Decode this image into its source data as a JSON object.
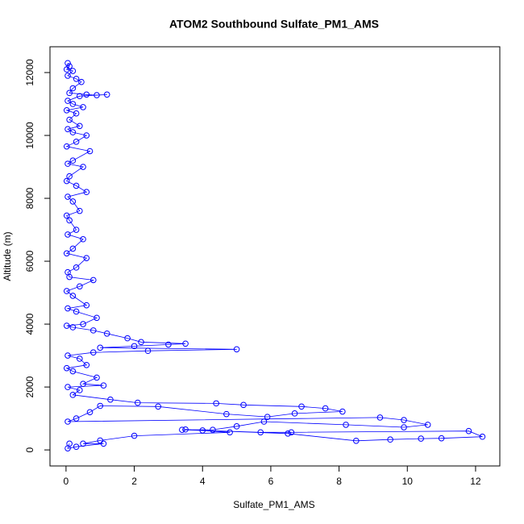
{
  "chart_data": {
    "type": "line",
    "title": "ATOM2 Southbound Sulfate_PM1_AMS",
    "x_label": "Sulfate_PM1_AMS",
    "y_label": "Altitude (m)",
    "color": "#0000ff",
    "marker": "open-circle",
    "xlim": [
      -0.47,
      12.71
    ],
    "ylim": [
      -510,
      12820
    ],
    "xticks": [
      0,
      2,
      4,
      6,
      8,
      10,
      12
    ],
    "yticks": [
      0,
      2000,
      4000,
      6000,
      8000,
      10000,
      12000
    ],
    "x": [
      0.05,
      0.1,
      0.02,
      0.2,
      0.05,
      0.3,
      0.45,
      0.2,
      0.1,
      0.6,
      0.9,
      1.2,
      0.4,
      0.05,
      0.2,
      0.5,
      0.02,
      0.3,
      0.1,
      0.4,
      0.05,
      0.2,
      0.6,
      0.3,
      0.02,
      0.7,
      0.2,
      0.05,
      0.5,
      0.1,
      0.02,
      0.3,
      0.6,
      0.05,
      0.2,
      0.4,
      0.02,
      0.1,
      0.3,
      0.05,
      0.5,
      0.2,
      0.02,
      0.6,
      0.3,
      0.05,
      0.1,
      0.8,
      0.4,
      0.02,
      0.2,
      0.6,
      0.05,
      0.3,
      0.9,
      0.5,
      0.02,
      0.2,
      0.8,
      1.2,
      1.8,
      2.2,
      3.5,
      3.0,
      2.0,
      1.0,
      5.0,
      2.4,
      0.8,
      0.05,
      0.4,
      0.6,
      0.02,
      0.2,
      0.9,
      0.5,
      1.1,
      0.05,
      0.4,
      0.2,
      1.3,
      2.1,
      4.4,
      5.2,
      6.9,
      7.6,
      8.1,
      6.7,
      5.9,
      4.7,
      2.7,
      1.0,
      0.7,
      0.3,
      0.05,
      9.2,
      9.9,
      10.6,
      9.9,
      8.2,
      5.8,
      5.0,
      4.3,
      3.4,
      5.7,
      6.6,
      11.8,
      12.2,
      11.0,
      10.4,
      9.5,
      8.5,
      6.5,
      4.0,
      3.5,
      4.8,
      2.0,
      1.0,
      0.5,
      1.1,
      0.3,
      0.05,
      0.1
    ],
    "values": [
      12300,
      12200,
      12100,
      12050,
      11900,
      11800,
      11700,
      11500,
      11350,
      11300,
      11280,
      11300,
      11250,
      11100,
      11000,
      10900,
      10800,
      10700,
      10500,
      10300,
      10200,
      10100,
      10000,
      9800,
      9650,
      9500,
      9200,
      9100,
      9000,
      8700,
      8550,
      8400,
      8200,
      8050,
      7900,
      7600,
      7450,
      7300,
      7000,
      6850,
      6700,
      6400,
      6250,
      6100,
      5800,
      5650,
      5500,
      5400,
      5200,
      5050,
      4900,
      4600,
      4500,
      4400,
      4200,
      4000,
      3950,
      3900,
      3800,
      3700,
      3550,
      3430,
      3380,
      3350,
      3300,
      3250,
      3200,
      3150,
      3100,
      3000,
      2900,
      2700,
      2600,
      2500,
      2300,
      2100,
      2050,
      2000,
      1900,
      1750,
      1600,
      1500,
      1480,
      1430,
      1380,
      1320,
      1220,
      1160,
      1050,
      1140,
      1380,
      1400,
      1200,
      1000,
      900,
      1030,
      950,
      800,
      720,
      800,
      900,
      750,
      640,
      640,
      560,
      560,
      600,
      420,
      370,
      360,
      330,
      290,
      520,
      620,
      650,
      560,
      450,
      300,
      200,
      200,
      100,
      50,
      200
    ]
  }
}
